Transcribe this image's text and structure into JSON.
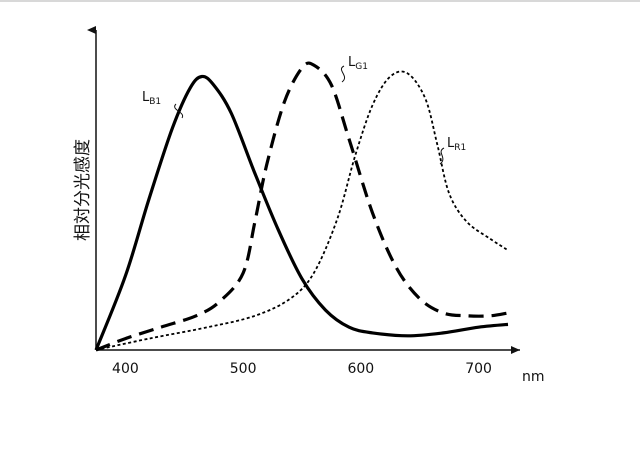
{
  "chart_data": {
    "type": "line",
    "title": "",
    "xlabel": "nm",
    "ylabel": "相対分光感度",
    "xlim": [
      375,
      725
    ],
    "ylim": [
      0,
      1.06
    ],
    "x_ticks": [
      400,
      500,
      600,
      700
    ],
    "grid": false,
    "legend": "none",
    "series": [
      {
        "name": "LB1",
        "label_main": "L",
        "label_sub": "B1",
        "style": "solid",
        "color": "#000000",
        "points": [
          [
            375,
            0.0
          ],
          [
            400,
            0.26
          ],
          [
            420,
            0.53
          ],
          [
            440,
            0.78
          ],
          [
            455,
            0.92
          ],
          [
            465,
            0.96
          ],
          [
            475,
            0.93
          ],
          [
            490,
            0.83
          ],
          [
            510,
            0.62
          ],
          [
            530,
            0.42
          ],
          [
            550,
            0.25
          ],
          [
            570,
            0.14
          ],
          [
            590,
            0.08
          ],
          [
            610,
            0.06
          ],
          [
            640,
            0.05
          ],
          [
            670,
            0.06
          ],
          [
            700,
            0.08
          ],
          [
            725,
            0.09
          ]
        ]
      },
      {
        "name": "LG1",
        "label_main": "L",
        "label_sub": "G1",
        "style": "dashed",
        "color": "#000000",
        "points": [
          [
            375,
            0.0
          ],
          [
            400,
            0.04
          ],
          [
            430,
            0.08
          ],
          [
            460,
            0.12
          ],
          [
            480,
            0.17
          ],
          [
            500,
            0.27
          ],
          [
            510,
            0.45
          ],
          [
            520,
            0.65
          ],
          [
            535,
            0.87
          ],
          [
            550,
            0.99
          ],
          [
            560,
            1.0
          ],
          [
            575,
            0.93
          ],
          [
            590,
            0.74
          ],
          [
            610,
            0.48
          ],
          [
            630,
            0.29
          ],
          [
            650,
            0.18
          ],
          [
            670,
            0.13
          ],
          [
            690,
            0.12
          ],
          [
            710,
            0.12
          ],
          [
            725,
            0.13
          ]
        ]
      },
      {
        "name": "LR1",
        "label_main": "L",
        "label_sub": "R1",
        "style": "dotted",
        "color": "#000000",
        "points": [
          [
            375,
            0.0
          ],
          [
            420,
            0.04
          ],
          [
            470,
            0.08
          ],
          [
            510,
            0.12
          ],
          [
            540,
            0.18
          ],
          [
            560,
            0.27
          ],
          [
            580,
            0.46
          ],
          [
            595,
            0.68
          ],
          [
            610,
            0.86
          ],
          [
            625,
            0.96
          ],
          [
            640,
            0.97
          ],
          [
            655,
            0.88
          ],
          [
            665,
            0.72
          ],
          [
            675,
            0.55
          ],
          [
            690,
            0.45
          ],
          [
            710,
            0.39
          ],
          [
            725,
            0.35
          ]
        ]
      }
    ]
  }
}
